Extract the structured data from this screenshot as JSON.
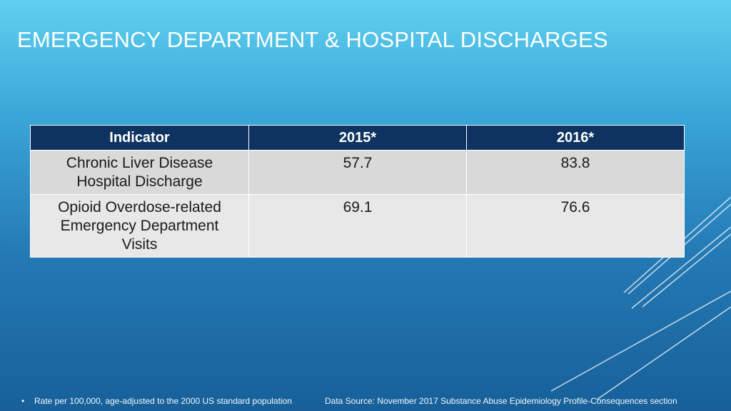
{
  "slide": {
    "title": "EMERGENCY DEPARTMENT & HOSPITAL DISCHARGES"
  },
  "table": {
    "headers": [
      "Indicator",
      "2015*",
      "2016*"
    ],
    "rows": [
      {
        "indicator_line1": "Chronic Liver Disease",
        "indicator_line2": "Hospital Discharge",
        "indicator_line3": "",
        "y2015": "57.7",
        "y2016": "83.8"
      },
      {
        "indicator_line1": "Opioid Overdose-related",
        "indicator_line2": "Emergency Department",
        "indicator_line3": "Visits",
        "y2015": "69.1",
        "y2016": "76.6"
      }
    ]
  },
  "footer": {
    "bullet": "•",
    "note": "Rate per 100,000, age-adjusted to the 2000 US standard population",
    "source": "Data Source: November 2017 Substance Abuse Epidemiology Profile-Consequences section"
  },
  "colors": {
    "header_bg": "#0f3360",
    "row_bg": "#e8e8e8",
    "background_top": "#5fd0ef",
    "background_bottom": "#17609a"
  }
}
